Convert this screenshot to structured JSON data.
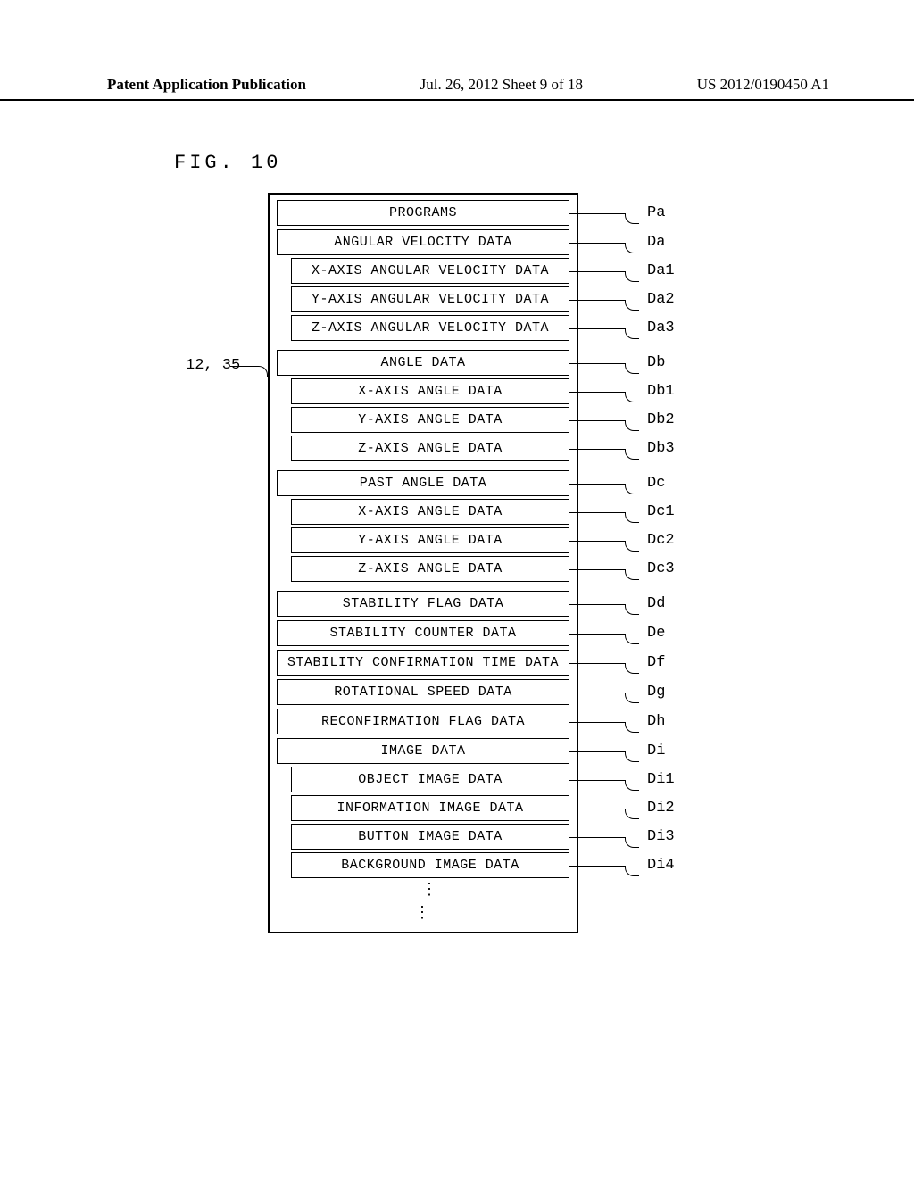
{
  "header": {
    "left": "Patent Application Publication",
    "center": "Jul. 26, 2012  Sheet 9 of 18",
    "right": "US 2012/0190450 A1"
  },
  "figLabel": "FIG. 10",
  "leftRef": "12, 35",
  "rows": [
    {
      "id": "programs",
      "text": "PROGRAMS",
      "label": "Pa",
      "sub": false
    },
    {
      "id": "angular-velocity",
      "text": "ANGULAR VELOCITY DATA",
      "label": "Da",
      "sub": false
    },
    {
      "id": "x-ang-vel",
      "text": "X-AXIS ANGULAR VELOCITY DATA",
      "label": "Da1",
      "sub": true
    },
    {
      "id": "y-ang-vel",
      "text": "Y-AXIS ANGULAR VELOCITY DATA",
      "label": "Da2",
      "sub": true
    },
    {
      "id": "z-ang-vel",
      "text": "Z-AXIS ANGULAR VELOCITY DATA",
      "label": "Da3",
      "sub": true
    },
    {
      "id": "angle-data",
      "text": "ANGLE DATA",
      "label": "Db",
      "sub": false,
      "gapBefore": true
    },
    {
      "id": "x-angle",
      "text": "X-AXIS ANGLE DATA",
      "label": "Db1",
      "sub": true
    },
    {
      "id": "y-angle",
      "text": "Y-AXIS ANGLE DATA",
      "label": "Db2",
      "sub": true
    },
    {
      "id": "z-angle",
      "text": "Z-AXIS ANGLE DATA",
      "label": "Db3",
      "sub": true
    },
    {
      "id": "past-angle",
      "text": "PAST ANGLE DATA",
      "label": "Dc",
      "sub": false,
      "gapBefore": true
    },
    {
      "id": "x-past",
      "text": "X-AXIS ANGLE DATA",
      "label": "Dc1",
      "sub": true
    },
    {
      "id": "y-past",
      "text": "Y-AXIS ANGLE DATA",
      "label": "Dc2",
      "sub": true
    },
    {
      "id": "z-past",
      "text": "Z-AXIS ANGLE DATA",
      "label": "Dc3",
      "sub": true
    },
    {
      "id": "stability-flag",
      "text": "STABILITY FLAG DATA",
      "label": "Dd",
      "sub": false,
      "gapBefore": true
    },
    {
      "id": "stability-counter",
      "text": "STABILITY COUNTER DATA",
      "label": "De",
      "sub": false
    },
    {
      "id": "stability-conf",
      "text": "STABILITY CONFIRMATION TIME DATA",
      "label": "Df",
      "sub": false
    },
    {
      "id": "rot-speed",
      "text": "ROTATIONAL SPEED DATA",
      "label": "Dg",
      "sub": false
    },
    {
      "id": "reconf-flag",
      "text": "RECONFIRMATION FLAG DATA",
      "label": "Dh",
      "sub": false
    },
    {
      "id": "image-data",
      "text": "IMAGE DATA",
      "label": "Di",
      "sub": false
    },
    {
      "id": "object-img",
      "text": "OBJECT IMAGE DATA",
      "label": "Di1",
      "sub": true
    },
    {
      "id": "info-img",
      "text": "INFORMATION IMAGE DATA",
      "label": "Di2",
      "sub": true
    },
    {
      "id": "button-img",
      "text": "BUTTON IMAGE DATA",
      "label": "Di3",
      "sub": true
    },
    {
      "id": "bg-img",
      "text": "BACKGROUND IMAGE DATA",
      "label": "Di4",
      "sub": true
    }
  ],
  "ellipsis": "⁞",
  "style": {
    "containerLeft": 300,
    "containerTop": 216,
    "containerWidth": 348,
    "labelX": 725,
    "leadStart": 648,
    "leadCurveStart": 700,
    "curveWidth": 16
  }
}
